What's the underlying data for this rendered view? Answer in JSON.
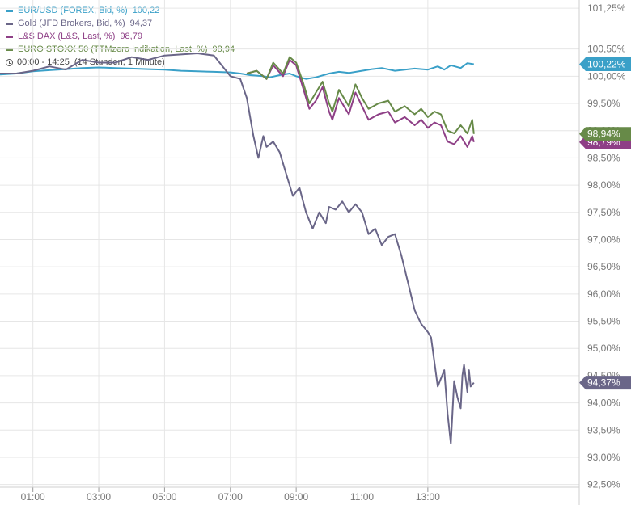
{
  "legend": {
    "items": [
      {
        "name": "EUR/USD (FOREX, Bid, %)",
        "value": "100,22",
        "color": "#3aa0c8"
      },
      {
        "name": "Gold (JFD Brokers, Bid, %)",
        "value": "94,37",
        "color": "#6a6688"
      },
      {
        "name": "L&S DAX (L&S, Last, %)",
        "value": "98,79",
        "color": "#8e3f86"
      },
      {
        "name": "EURO STOXX 50 (TTMzero Indikation, Last, %)",
        "value": "98,94",
        "color": "#678a48"
      }
    ],
    "time_range": "00:00 - 14:25",
    "time_detail": "(14 Stunden, 1 Minute)"
  },
  "chart_data": {
    "type": "line",
    "x_unit": "hours since 00:00",
    "xlim": [
      0,
      17.6
    ],
    "ylim": [
      92.45,
      101.4
    ],
    "x_ticks": [
      {
        "x": 1,
        "label": "01:00"
      },
      {
        "x": 3,
        "label": "03:00"
      },
      {
        "x": 5,
        "label": "05:00"
      },
      {
        "x": 7,
        "label": "07:00"
      },
      {
        "x": 9,
        "label": "09:00"
      },
      {
        "x": 11,
        "label": "11:00"
      },
      {
        "x": 13,
        "label": "13:00"
      }
    ],
    "y_ticks": [
      {
        "y": 101.25,
        "label": "101,25%"
      },
      {
        "y": 100.5,
        "label": "100,50%"
      },
      {
        "y": 100.0,
        "label": "100,00%"
      },
      {
        "y": 99.5,
        "label": "99,50%"
      },
      {
        "y": 99.0,
        "label": "99,00%"
      },
      {
        "y": 98.5,
        "label": "98,50%"
      },
      {
        "y": 98.0,
        "label": "98,00%"
      },
      {
        "y": 97.5,
        "label": "97,50%"
      },
      {
        "y": 97.0,
        "label": "97,00%"
      },
      {
        "y": 96.5,
        "label": "96,50%"
      },
      {
        "y": 96.0,
        "label": "96,00%"
      },
      {
        "y": 95.5,
        "label": "95,50%"
      },
      {
        "y": 95.0,
        "label": "95,00%"
      },
      {
        "y": 94.5,
        "label": "94,50%"
      },
      {
        "y": 94.0,
        "label": "94,00%"
      },
      {
        "y": 93.5,
        "label": "93,50%"
      },
      {
        "y": 93.0,
        "label": "93,00%"
      },
      {
        "y": 92.5,
        "label": "92,50%"
      }
    ],
    "grid": true,
    "series": [
      {
        "name": "EUR/USD (FOREX, Bid, %)",
        "color": "#3aa0c8",
        "last_label": "100,22%",
        "x": [
          0,
          0.5,
          1,
          1.5,
          2,
          2.5,
          3,
          3.5,
          4,
          4.5,
          5,
          5.5,
          6,
          6.5,
          7,
          7.3,
          7.6,
          8,
          8.2,
          8.5,
          8.8,
          9,
          9.3,
          9.6,
          10,
          10.3,
          10.6,
          11,
          11.3,
          11.6,
          12,
          12.3,
          12.6,
          13,
          13.3,
          13.5,
          13.7,
          14,
          14.2,
          14.4
        ],
        "y": [
          100.03,
          100.05,
          100.09,
          100.11,
          100.13,
          100.15,
          100.16,
          100.15,
          100.14,
          100.13,
          100.12,
          100.1,
          100.09,
          100.08,
          100.07,
          100.05,
          100.02,
          100.0,
          99.98,
          100.02,
          100.05,
          100.0,
          99.95,
          99.98,
          100.05,
          100.08,
          100.06,
          100.1,
          100.13,
          100.15,
          100.1,
          100.12,
          100.14,
          100.12,
          100.18,
          100.12,
          100.2,
          100.15,
          100.24,
          100.22
        ]
      },
      {
        "name": "Gold (JFD Brokers, Bid, %)",
        "color": "#6a6688",
        "last_label": "94,37%",
        "x": [
          0,
          0.5,
          1,
          1.5,
          2,
          2.5,
          3,
          3.5,
          4,
          4.5,
          5,
          5.5,
          6,
          6.5,
          7,
          7.3,
          7.5,
          7.7,
          7.85,
          8.0,
          8.1,
          8.3,
          8.5,
          8.7,
          8.9,
          9.1,
          9.3,
          9.5,
          9.7,
          9.9,
          10.0,
          10.2,
          10.4,
          10.6,
          10.8,
          11.0,
          11.2,
          11.4,
          11.6,
          11.8,
          12.0,
          12.2,
          12.4,
          12.6,
          12.8,
          13.0,
          13.1,
          13.3,
          13.5,
          13.6,
          13.7,
          13.8,
          13.9,
          14.0,
          14.05,
          14.1,
          14.2,
          14.25,
          14.3,
          14.4
        ],
        "y": [
          100.05,
          100.05,
          100.1,
          100.18,
          100.12,
          100.3,
          100.25,
          100.25,
          100.35,
          100.3,
          100.38,
          100.4,
          100.42,
          100.38,
          100.0,
          99.95,
          99.6,
          98.9,
          98.5,
          98.9,
          98.7,
          98.8,
          98.6,
          98.2,
          97.8,
          97.95,
          97.5,
          97.2,
          97.5,
          97.3,
          97.6,
          97.55,
          97.7,
          97.5,
          97.65,
          97.5,
          97.1,
          97.2,
          96.9,
          97.05,
          97.1,
          96.7,
          96.2,
          95.7,
          95.45,
          95.3,
          95.2,
          94.3,
          94.6,
          93.8,
          93.25,
          94.4,
          94.1,
          93.9,
          94.5,
          94.7,
          94.2,
          94.6,
          94.3,
          94.37
        ]
      },
      {
        "name": "L&S DAX (L&S, Last, %)",
        "color": "#8e3f86",
        "last_label": "98,79%",
        "x": [
          7.5,
          7.8,
          8.1,
          8.3,
          8.6,
          8.8,
          9.0,
          9.2,
          9.4,
          9.6,
          9.8,
          10.0,
          10.1,
          10.3,
          10.6,
          10.8,
          11.0,
          11.2,
          11.5,
          11.8,
          12.0,
          12.3,
          12.6,
          12.8,
          13.0,
          13.2,
          13.4,
          13.6,
          13.8,
          14.0,
          14.2,
          14.35,
          14.4
        ],
        "y": [
          100.05,
          100.1,
          99.95,
          100.2,
          100.0,
          100.3,
          100.2,
          99.8,
          99.4,
          99.55,
          99.8,
          99.35,
          99.2,
          99.6,
          99.3,
          99.7,
          99.45,
          99.2,
          99.3,
          99.35,
          99.15,
          99.25,
          99.1,
          99.2,
          99.05,
          99.15,
          99.1,
          98.8,
          98.75,
          98.9,
          98.7,
          98.9,
          98.79
        ]
      },
      {
        "name": "EURO STOXX 50 (TTMzero Indikation, Last, %)",
        "color": "#678a48",
        "last_label": "98,94%",
        "x": [
          7.5,
          7.8,
          8.1,
          8.3,
          8.6,
          8.8,
          9.0,
          9.2,
          9.4,
          9.6,
          9.8,
          10.0,
          10.1,
          10.3,
          10.6,
          10.8,
          11.0,
          11.2,
          11.5,
          11.8,
          12.0,
          12.3,
          12.6,
          12.8,
          13.0,
          13.2,
          13.4,
          13.6,
          13.8,
          14.0,
          14.2,
          14.35,
          14.4
        ],
        "y": [
          100.05,
          100.1,
          99.95,
          100.25,
          100.05,
          100.35,
          100.25,
          99.9,
          99.5,
          99.7,
          99.9,
          99.5,
          99.35,
          99.75,
          99.45,
          99.85,
          99.6,
          99.4,
          99.5,
          99.55,
          99.35,
          99.45,
          99.3,
          99.4,
          99.25,
          99.35,
          99.3,
          99.0,
          98.95,
          99.1,
          98.95,
          99.2,
          98.94
        ]
      }
    ]
  }
}
